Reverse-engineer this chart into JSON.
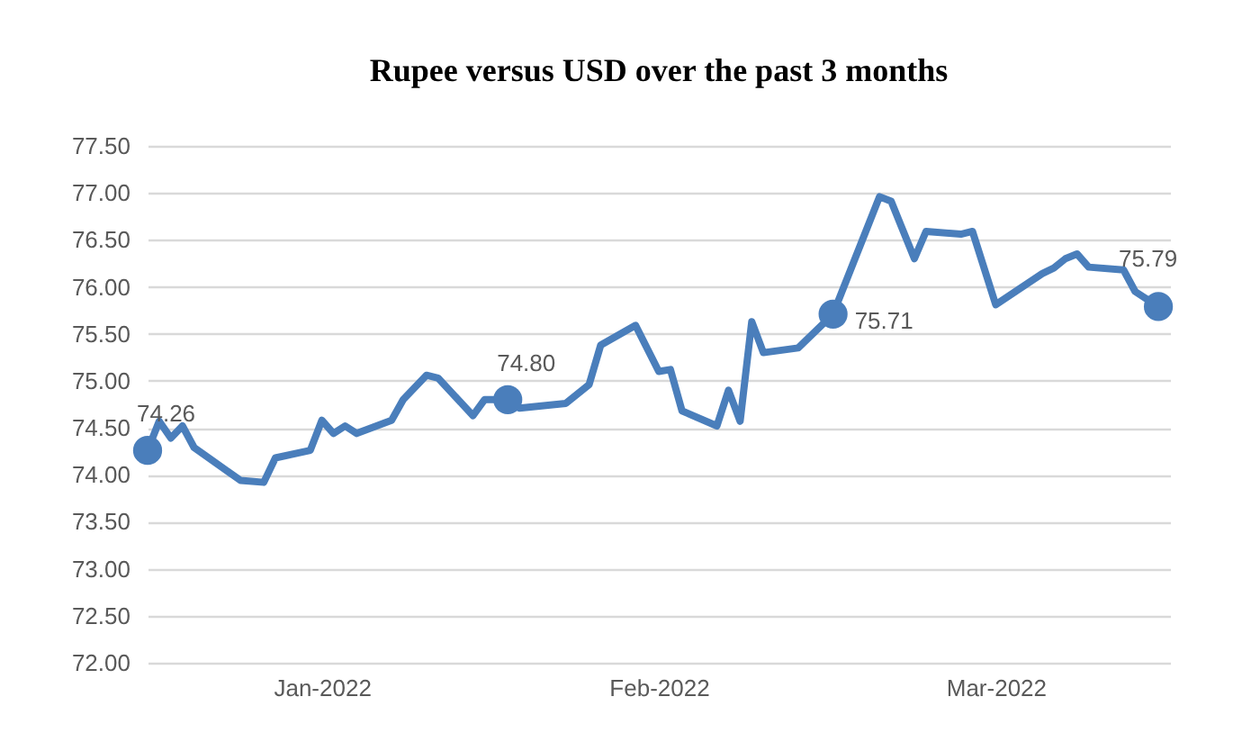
{
  "chart_data": {
    "type": "line",
    "title": "Rupee versus USD over the past 3 months",
    "x": [
      "2022-01-01",
      "2022-01-02",
      "2022-01-03",
      "2022-01-04",
      "2022-01-05",
      "2022-01-09",
      "2022-01-11",
      "2022-01-12",
      "2022-01-15",
      "2022-01-16",
      "2022-01-17",
      "2022-01-18",
      "2022-01-19",
      "2022-01-22",
      "2022-01-23",
      "2022-01-25",
      "2022-01-26",
      "2022-01-29",
      "2022-01-30",
      "2022-02-01",
      "2022-02-02",
      "2022-02-06",
      "2022-02-08",
      "2022-02-09",
      "2022-02-12",
      "2022-02-14",
      "2022-02-15",
      "2022-02-16",
      "2022-02-19",
      "2022-02-20",
      "2022-02-21",
      "2022-02-22",
      "2022-02-23",
      "2022-02-26",
      "2022-03-01",
      "2022-03-05",
      "2022-03-06",
      "2022-03-08",
      "2022-03-09",
      "2022-03-12",
      "2022-03-13",
      "2022-03-15",
      "2022-03-19",
      "2022-03-20",
      "2022-03-21",
      "2022-03-22",
      "2022-03-23",
      "2022-03-26",
      "2022-03-27",
      "2022-03-29"
    ],
    "series": [
      {
        "color": "#4a7ebb",
        "values": [
          74.26,
          74.57,
          74.39,
          74.52,
          74.29,
          73.94,
          73.92,
          74.18,
          74.26,
          74.58,
          74.44,
          74.52,
          74.44,
          74.58,
          74.8,
          75.06,
          75.03,
          74.63,
          74.8,
          74.8,
          74.71,
          74.76,
          74.96,
          75.38,
          75.59,
          75.1,
          75.12,
          74.68,
          74.52,
          74.9,
          74.57,
          75.63,
          75.3,
          75.35,
          75.71,
          76.96,
          76.91,
          76.3,
          76.59,
          76.56,
          76.59,
          75.81,
          76.14,
          76.2,
          76.3,
          76.35,
          76.21,
          76.18,
          75.95,
          75.79
        ]
      },
      {
        "type": "scatter",
        "marker": "circle",
        "color": "#4a7ebb",
        "x": [
          "2022-01-01",
          "2022-02-01",
          "2022-03-01",
          "2022-03-29"
        ],
        "values": [
          74.26,
          74.8,
          75.71,
          75.79
        ],
        "value_labels": [
          "74.26",
          "74.80",
          "75.71",
          "75.79"
        ]
      }
    ],
    "line_style": "solid",
    "xlim": [
      "2022-01-01",
      "2022-03-30"
    ],
    "xticks": [
      {
        "value": "2022-01-16",
        "label": "Jan-2022"
      },
      {
        "value": "2022-02-14",
        "label": "Feb-2022"
      },
      {
        "value": "2022-03-15",
        "label": "Mar-2022"
      }
    ],
    "ylim": [
      72,
      77.5
    ],
    "yticks": [
      {
        "value": 72,
        "label": "72.00"
      },
      {
        "value": 72.5,
        "label": "72.50"
      },
      {
        "value": 73,
        "label": "73.00"
      },
      {
        "value": 73.5,
        "label": "73.50"
      },
      {
        "value": 74,
        "label": "74.00"
      },
      {
        "value": 74.5,
        "label": "74.50"
      },
      {
        "value": 75,
        "label": "75.00"
      },
      {
        "value": 75.5,
        "label": "75.50"
      },
      {
        "value": 76,
        "label": "76.00"
      },
      {
        "value": 76.5,
        "label": "76.50"
      },
      {
        "value": 77,
        "label": "77.00"
      },
      {
        "value": 77.5,
        "label": "77.50"
      }
    ],
    "grid": "y"
  }
}
